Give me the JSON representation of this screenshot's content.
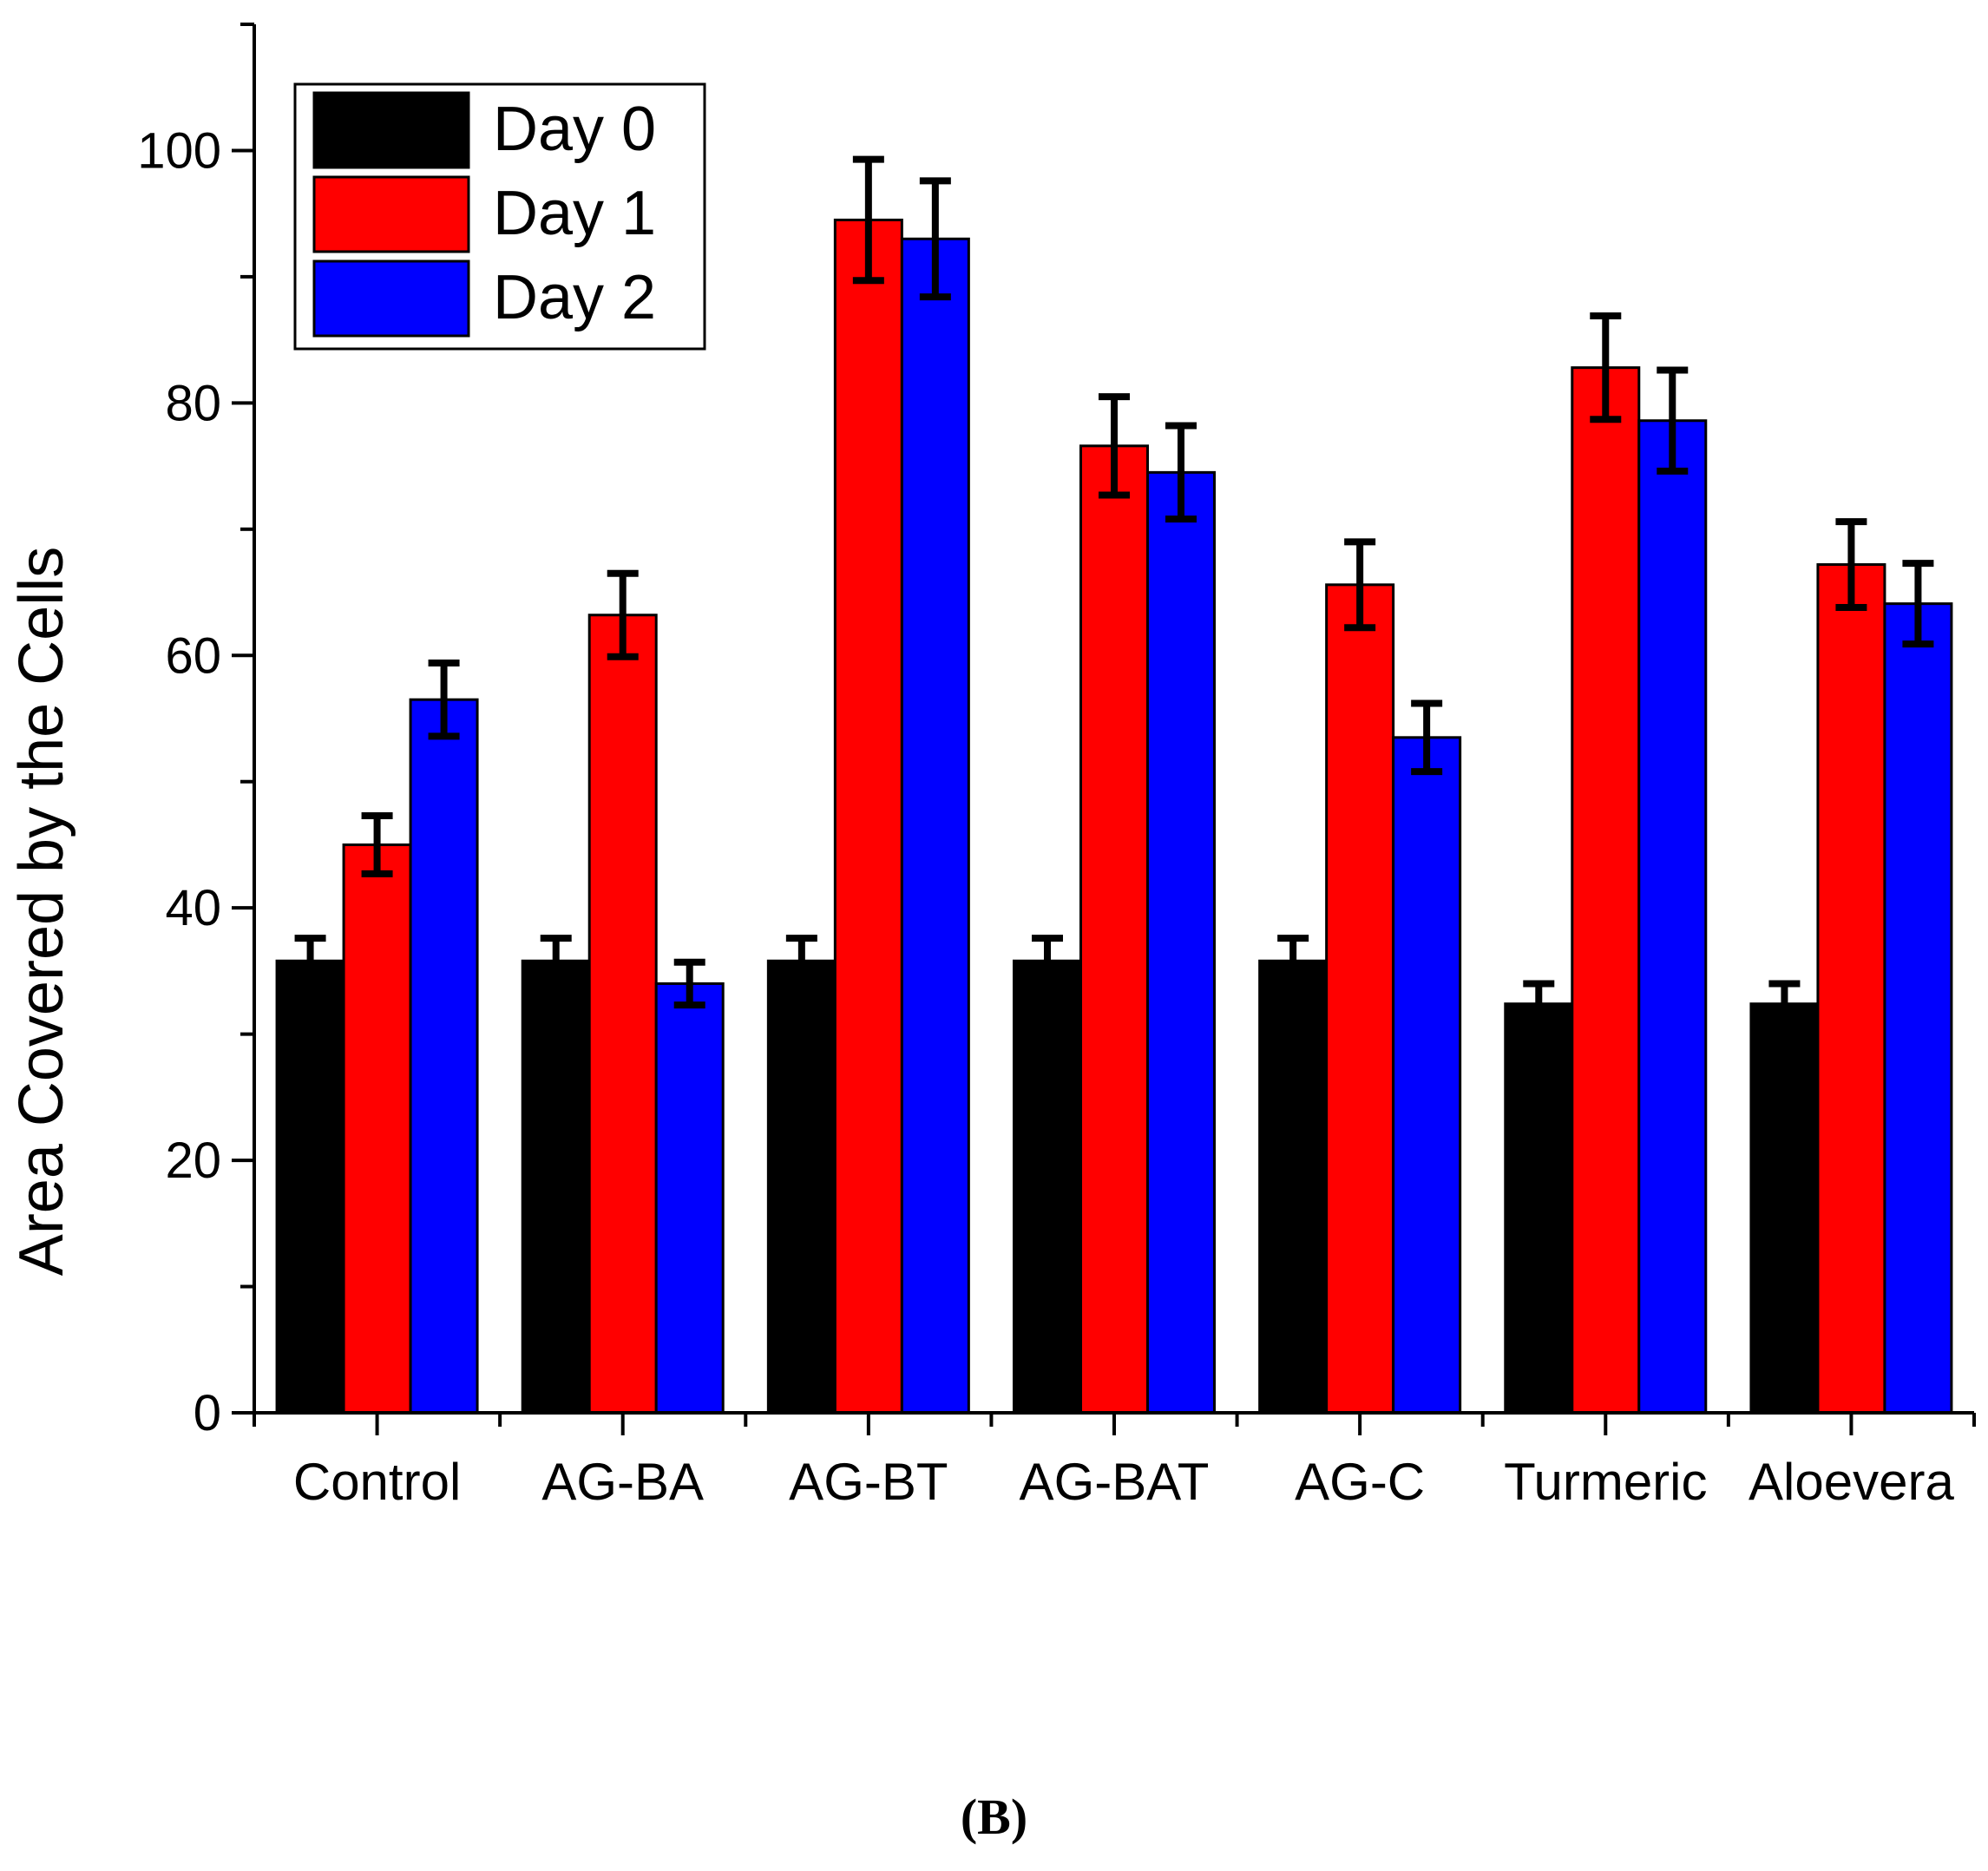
{
  "panel_label": "(B)",
  "chart_data": {
    "type": "bar",
    "title": "",
    "xlabel": "",
    "ylabel": "Area Covered by the Cells",
    "ylim": [
      0,
      110
    ],
    "yticks": [
      0,
      20,
      40,
      60,
      80,
      100
    ],
    "grid": false,
    "legend_position": "top-left",
    "categories": [
      "Control",
      "AG-BA",
      "AG-BT",
      "AG-BAT",
      "AG-C",
      "Turmeric",
      "Aloevera"
    ],
    "series": [
      {
        "name": "Day 0",
        "color": "#000000",
        "values": [
          35.8,
          35.8,
          35.8,
          35.8,
          35.8,
          32.4,
          32.4
        ],
        "errors": [
          1.8,
          1.8,
          1.8,
          1.8,
          1.8,
          1.6,
          1.6
        ]
      },
      {
        "name": "Day 1",
        "color": "#ff0000",
        "values": [
          45.0,
          63.2,
          94.5,
          76.6,
          65.6,
          82.8,
          67.2
        ],
        "errors": [
          2.3,
          3.3,
          4.8,
          3.9,
          3.4,
          4.1,
          3.4
        ]
      },
      {
        "name": "Day 2",
        "color": "#0000ff",
        "values": [
          56.5,
          34.0,
          93.0,
          74.5,
          53.5,
          78.6,
          64.1
        ],
        "errors": [
          2.9,
          1.7,
          4.6,
          3.7,
          2.7,
          4.0,
          3.2
        ]
      }
    ]
  }
}
